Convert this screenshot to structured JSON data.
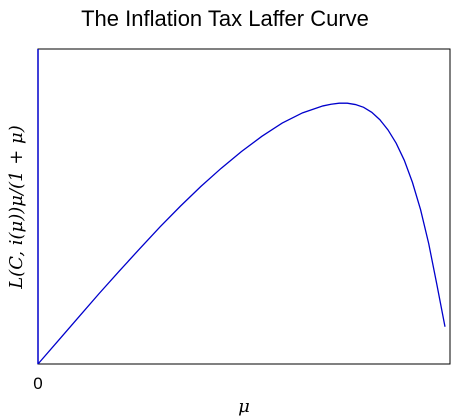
{
  "chart_data": {
    "type": "line",
    "title": "The Inflation Tax Laffer Curve",
    "xlabel": "μ",
    "ylabel": "L(C, i(μ))μ/(1 + μ)",
    "x_ticks": [
      "0"
    ],
    "xlim": [
      0,
      1
    ],
    "ylim": [
      0,
      1
    ],
    "grid": false,
    "legend": "none",
    "color": "#0000cc",
    "series": [
      {
        "x": [
          0,
          0.05,
          0.1,
          0.15,
          0.2,
          0.25,
          0.3,
          0.35,
          0.4,
          0.45,
          0.5,
          0.55,
          0.6,
          0.65,
          0.7,
          0.72,
          0.74,
          0.76,
          0.78,
          0.8,
          0.82,
          0.84,
          0.86,
          0.88,
          0.9,
          0.92,
          0.94,
          0.96,
          0.98,
          1.0
        ],
        "y": [
          0,
          0.085,
          0.17,
          0.255,
          0.337,
          0.418,
          0.497,
          0.572,
          0.643,
          0.709,
          0.77,
          0.825,
          0.873,
          0.91,
          0.935,
          0.941,
          0.945,
          0.945,
          0.94,
          0.93,
          0.912,
          0.885,
          0.848,
          0.8,
          0.738,
          0.658,
          0.559,
          0.436,
          0.288,
          0.135
        ]
      }
    ]
  }
}
